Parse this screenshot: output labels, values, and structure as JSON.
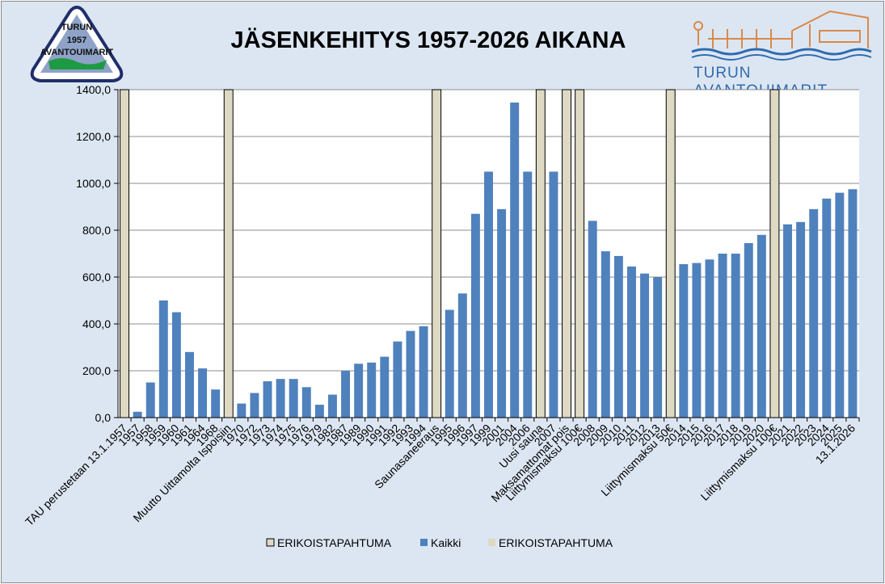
{
  "title": "JÄSENKEHITYS  1957-2026 AIKANA",
  "logo_left": {
    "line1": "TURUN",
    "line2": "1957",
    "line3": "AVANTOUIMARIT"
  },
  "logo_right": {
    "text": "TURUN AVANTOUIMARIT"
  },
  "colors": {
    "bar": "#4f81bd",
    "special": "#ddd9c3",
    "special_border": "#000000",
    "background": "#dce6f2",
    "plot": "#ffffff"
  },
  "chart_data": {
    "type": "bar",
    "categories": [
      "TAU perustetaan 13.1.1957",
      "1957",
      "1958",
      "1959",
      "1960",
      "1961",
      "1964",
      "1968",
      "Muutto Uittamolta Ispoisiin",
      "1970",
      "1972",
      "1973",
      "1974",
      "1975",
      "1976",
      "1979",
      "1982",
      "1987",
      "1989",
      "1990",
      "1991",
      "1992",
      "1993",
      "1994",
      "Saunasaneeraus",
      "1995",
      "1996",
      "1997",
      "1999",
      "2001",
      "2004",
      "2006",
      "Uusi sauna",
      "2007",
      "Maksamattomat pois",
      "Liittymismaksu 100€",
      "2008",
      "2009",
      "2010",
      "2011",
      "2012",
      "2013",
      "Liittymismaksu 50€",
      "2014",
      "2015",
      "2016",
      "2017",
      "2018",
      "2019",
      "2020",
      "Liittymismaksu 100€",
      "2021",
      "2022",
      "2023",
      "2024",
      "2025",
      "13.1.2026"
    ],
    "special": [
      true,
      false,
      false,
      false,
      false,
      false,
      false,
      false,
      true,
      false,
      false,
      false,
      false,
      false,
      false,
      false,
      false,
      false,
      false,
      false,
      false,
      false,
      false,
      false,
      true,
      false,
      false,
      false,
      false,
      false,
      false,
      false,
      true,
      false,
      true,
      true,
      false,
      false,
      false,
      false,
      false,
      false,
      true,
      false,
      false,
      false,
      false,
      false,
      false,
      false,
      true,
      false,
      false,
      false,
      false,
      false,
      false
    ],
    "series": [
      {
        "name": "Kaikki",
        "values": [
          null,
          25,
          150,
          500,
          450,
          280,
          210,
          120,
          null,
          60,
          105,
          155,
          165,
          165,
          130,
          55,
          98,
          200,
          230,
          235,
          260,
          325,
          370,
          390,
          null,
          460,
          530,
          870,
          1050,
          890,
          1345,
          1050,
          null,
          1050,
          null,
          null,
          840,
          710,
          690,
          645,
          615,
          600,
          null,
          655,
          660,
          675,
          700,
          700,
          745,
          780,
          null,
          825,
          835,
          890,
          935,
          960,
          975
        ]
      }
    ],
    "special_name": "ERIKOISTAPAHTUMA",
    "legend": [
      "ERIKOISTAPAHTUMA",
      "Kaikki",
      "ERIKOISTAPAHTUMA"
    ],
    "legend_position": "bottom",
    "ylim": [
      0,
      1400
    ],
    "yticks": [
      "0,0",
      "200,0",
      "400,0",
      "600,0",
      "800,0",
      "1000,0",
      "1200,0",
      "1400,0"
    ],
    "grid": true
  }
}
